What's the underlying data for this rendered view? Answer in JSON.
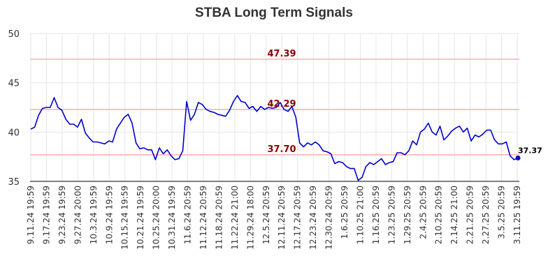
{
  "chart_data": {
    "type": "line",
    "title": "STBA Long Term Signals",
    "ylim": [
      35,
      50
    ],
    "yticks": [
      35,
      40,
      45,
      50
    ],
    "grid": true,
    "line_color": "#0000cc",
    "ref_line_color": "#ffc0c0",
    "ref_label_color": "#8b0000",
    "x_tick_labels": [
      "9.11.24 19:59",
      "9.17.24 19:59",
      "9.23.24 19:59",
      "9.27.24 20:00",
      "10.3.24 19:59",
      "10.9.24 19:59",
      "10.15.24 19:59",
      "10.21.24 19:59",
      "10.25.24 20:00",
      "10.31.24 19:59",
      "11.6.24 20:59",
      "11.12.24 20:59",
      "11.18.24 20:59",
      "11.22.24 21:00",
      "11.29.24 18:00",
      "12.5.24 20:59",
      "12.11.24 20:59",
      "12.17.24 20:59",
      "12.23.24 20:59",
      "12.30.24 20:59",
      "1.6.25 20:59",
      "1.10.25 21:00",
      "1.16.25 20:59",
      "1.23.25 20:59",
      "1.29.25 20:59",
      "2.4.25 20:59",
      "2.10.25 20:59",
      "2.14.25 21:00",
      "2.21.25 20:59",
      "2.27.25 20:59",
      "3.5.25 20:59",
      "3.11.25 19:59"
    ],
    "reference_lines": [
      {
        "value": 47.39,
        "label": "47.39"
      },
      {
        "value": 42.29,
        "label": "42.29"
      },
      {
        "value": 37.7,
        "label": "37.70"
      }
    ],
    "last_value_label": "37.37",
    "values": [
      40.3,
      40.5,
      41.7,
      42.4,
      42.5,
      42.5,
      43.5,
      42.5,
      42.2,
      41.3,
      40.8,
      40.8,
      40.5,
      41.3,
      39.9,
      39.4,
      39.0,
      39.0,
      38.9,
      38.8,
      39.1,
      39.0,
      40.3,
      40.9,
      41.5,
      41.8,
      40.9,
      38.9,
      38.3,
      38.4,
      38.2,
      38.2,
      37.2,
      38.4,
      37.8,
      38.2,
      37.6,
      37.2,
      37.3,
      38.1,
      43.1,
      41.2,
      41.8,
      43.0,
      42.8,
      42.3,
      42.1,
      42.0,
      41.8,
      41.7,
      41.6,
      42.2,
      43.1,
      43.7,
      43.1,
      43.0,
      42.4,
      42.6,
      42.1,
      42.6,
      42.3,
      42.5,
      42.4,
      42.5,
      43.0,
      42.3,
      42.1,
      42.6,
      41.5,
      38.9,
      38.5,
      38.9,
      38.7,
      39.0,
      38.7,
      38.1,
      38.0,
      37.8,
      36.8,
      37.0,
      36.9,
      36.5,
      36.3,
      36.3,
      35.1,
      35.4,
      36.5,
      36.9,
      36.7,
      37.0,
      37.3,
      36.7,
      36.9,
      37.0,
      37.9,
      37.9,
      37.7,
      38.1,
      39.1,
      38.7,
      40.0,
      40.3,
      40.9,
      40.0,
      39.7,
      40.6,
      39.2,
      39.6,
      40.1,
      40.4,
      40.6,
      40.0,
      40.4,
      39.1,
      39.7,
      39.5,
      39.8,
      40.2,
      40.2,
      39.2,
      38.8,
      38.8,
      39.0,
      37.6,
      37.2,
      37.37
    ]
  }
}
